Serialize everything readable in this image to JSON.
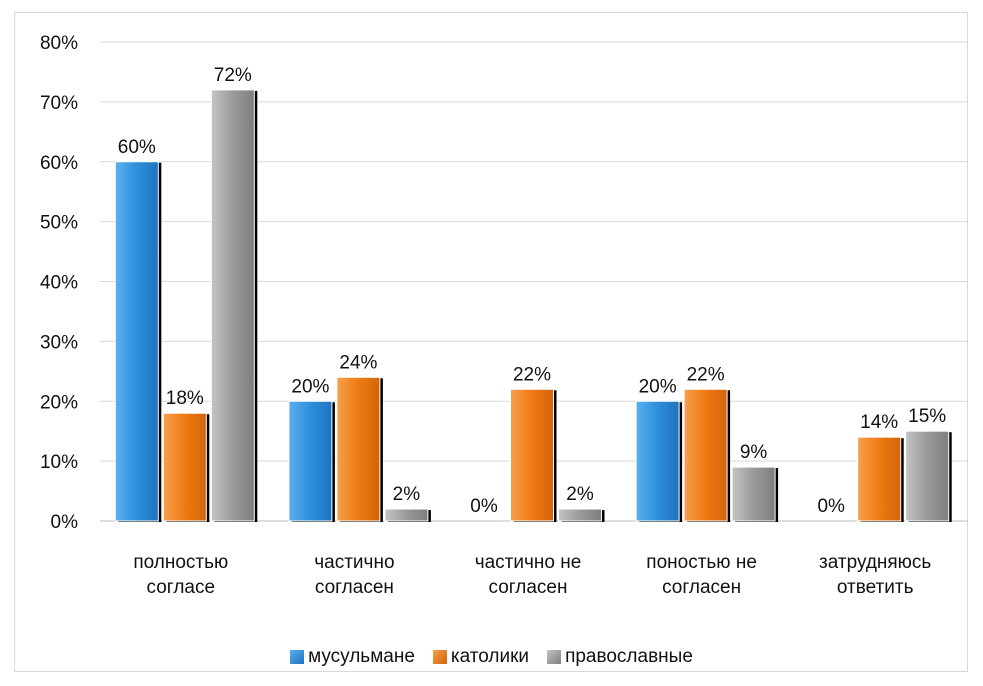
{
  "chart_data": {
    "type": "bar",
    "categories": [
      "полностью\nсогласе",
      "частично\nсогласен",
      "частично не\nсогласен",
      "поностью не\nсогласен",
      "затрудняюсь\nответить"
    ],
    "series": [
      {
        "name": "мусульмане",
        "values": [
          60,
          20,
          0,
          20,
          0
        ],
        "labels": [
          "60%",
          "20%",
          "0%",
          "20%",
          "0%"
        ],
        "color": "#2e8fdc"
      },
      {
        "name": "католики",
        "values": [
          18,
          24,
          22,
          22,
          14
        ],
        "labels": [
          "18%",
          "24%",
          "22%",
          "22%",
          "14%"
        ],
        "color": "#ef7a12"
      },
      {
        "name": "православные",
        "values": [
          72,
          2,
          2,
          9,
          15
        ],
        "labels": [
          "72%",
          "2%",
          "2%",
          "9%",
          "15%"
        ],
        "color": "#9a9a9a"
      }
    ],
    "ylim": [
      0,
      80
    ],
    "yticks": [
      "0%",
      "10%",
      "20%",
      "30%",
      "40%",
      "50%",
      "60%",
      "70%",
      "80%"
    ],
    "grid": true,
    "legend_position": "bottom"
  }
}
